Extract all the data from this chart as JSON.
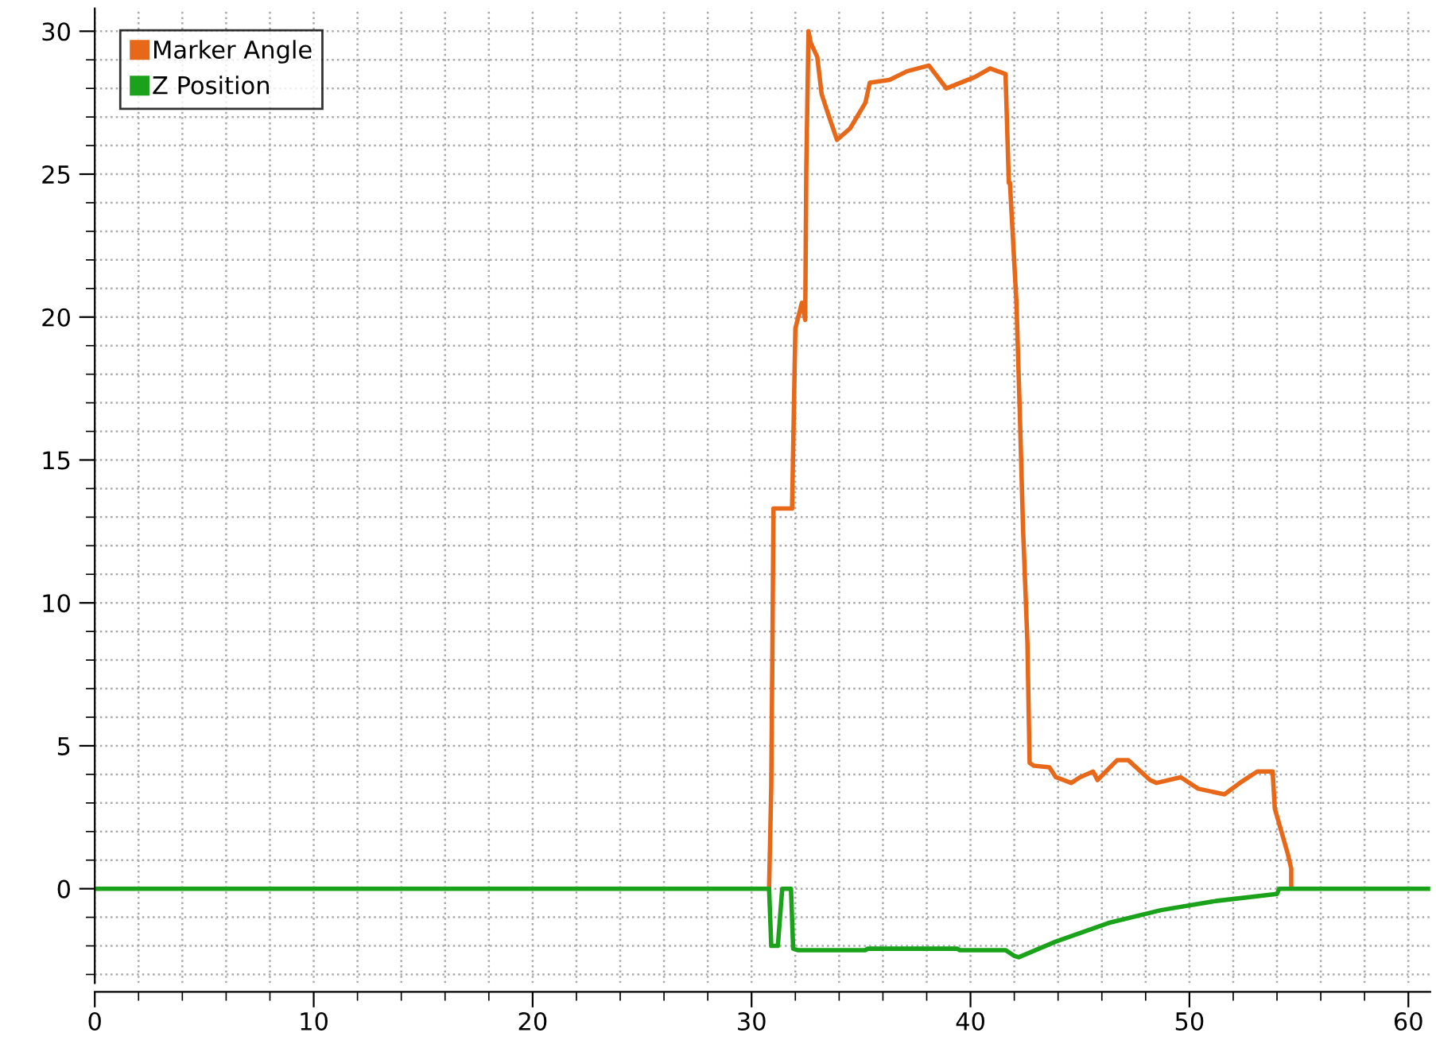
{
  "chart_data": {
    "type": "line",
    "xlim": [
      0,
      61
    ],
    "ylim": [
      -3.3,
      30.8
    ],
    "xticks": [
      0,
      10,
      20,
      30,
      40,
      50,
      60
    ],
    "yticks": [
      0,
      5,
      10,
      15,
      20,
      25,
      30
    ],
    "grid": true,
    "legend": "top left",
    "line_style": "solid",
    "marker": "none",
    "series": [
      {
        "name": "Marker Angle",
        "color": "#e8681a",
        "x": [
          30.8,
          30.9,
          30.95,
          31.0,
          31.85,
          32.0,
          32.3,
          32.45,
          32.5,
          32.6,
          32.7,
          33.0,
          33.2,
          33.5,
          33.9,
          34.5,
          35.2,
          35.4,
          36.3,
          37.1,
          38.1,
          38.9,
          40.2,
          40.9,
          41.6,
          41.75,
          41.8,
          42.1,
          42.25,
          42.4,
          42.6,
          42.7,
          42.9,
          43.6,
          43.9,
          44.6,
          45.0,
          45.6,
          45.8,
          46.7,
          47.2,
          48.2,
          48.5,
          49.6,
          50.4,
          51.6,
          52.3,
          53.1,
          53.8,
          53.9,
          54.2,
          54.5,
          54.65,
          54.65
        ],
        "values": [
          0,
          3.6,
          8.2,
          13.3,
          13.3,
          19.6,
          20.5,
          19.9,
          25.2,
          30.0,
          29.6,
          29.1,
          27.8,
          27.1,
          26.2,
          26.6,
          27.5,
          28.2,
          28.3,
          28.6,
          28.8,
          28.0,
          28.4,
          28.7,
          28.5,
          24.7,
          24.7,
          20.5,
          16.7,
          12.6,
          8.6,
          4.4,
          4.3,
          4.25,
          3.9,
          3.7,
          3.9,
          4.1,
          3.8,
          4.5,
          4.5,
          3.8,
          3.7,
          3.9,
          3.5,
          3.3,
          3.7,
          4.1,
          4.1,
          2.8,
          2.0,
          1.2,
          0.7,
          0.1
        ]
      },
      {
        "name": "Z Position",
        "color": "#1aa31a",
        "x": [
          0,
          30.8,
          30.9,
          31.0,
          31.2,
          31.3,
          31.4,
          31.8,
          31.9,
          32.1,
          35.2,
          35.3,
          39.4,
          39.5,
          41.6,
          42.0,
          42.2,
          43.9,
          46.3,
          48.7,
          51.2,
          54.0,
          54.1,
          61
        ],
        "values": [
          0,
          0,
          -2.0,
          -2.0,
          -2.0,
          -1.0,
          0,
          0,
          -2.1,
          -2.15,
          -2.15,
          -2.1,
          -2.1,
          -2.15,
          -2.15,
          -2.35,
          -2.4,
          -1.85,
          -1.2,
          -0.75,
          -0.43,
          -0.18,
          0,
          0
        ]
      }
    ]
  }
}
